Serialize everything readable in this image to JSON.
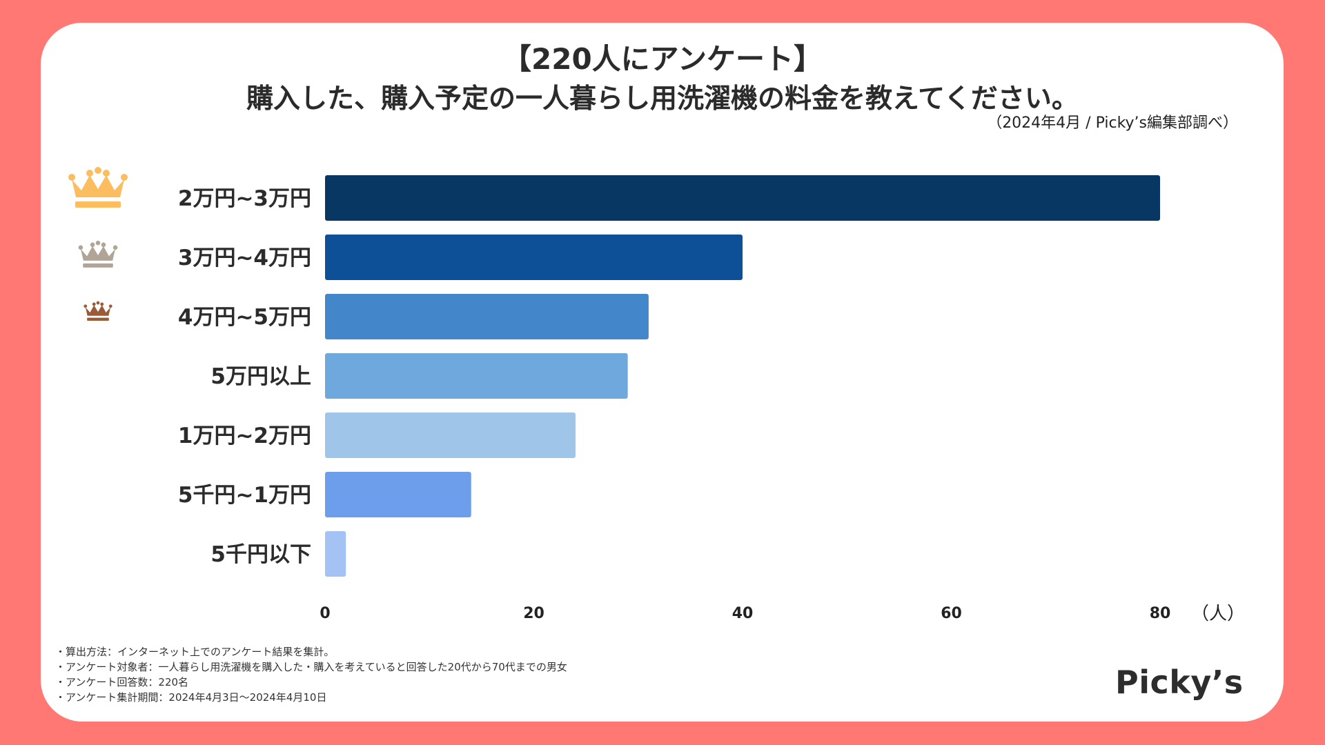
{
  "header": {
    "title": "【220人にアンケート】",
    "subtitle": "購入した、購入予定の一人暮らし用洗濯機の料金を教えてください。",
    "source": "（2024年4月 / Picky’s編集部調べ）"
  },
  "chart_data": {
    "type": "bar",
    "orientation": "horizontal",
    "title": "購入した、購入予定の一人暮らし用洗濯機の料金を教えてください。",
    "categories": [
      "2万円~3万円",
      "3万円~4万円",
      "4万円~5万円",
      "5万円以上",
      "1万円~2万円",
      "5千円~1万円",
      "5千円以下"
    ],
    "values": [
      80,
      40,
      31,
      29,
      24,
      14,
      2
    ],
    "colors": [
      "#093764",
      "#0d5097",
      "#4387ca",
      "#6fa8dc",
      "#9fc5e8",
      "#6d9eeb",
      "#a4c2f4"
    ],
    "xlim": [
      0,
      80
    ],
    "xticks": [
      0,
      20,
      40,
      60,
      80
    ],
    "xlabel": "（人）",
    "ylabel": "",
    "grid": false,
    "rank_icons": [
      {
        "rank": 1,
        "icon": "crown-gold-icon",
        "color": "#fbbd5d"
      },
      {
        "rank": 2,
        "icon": "crown-silver-icon",
        "color": "#b1a598"
      },
      {
        "rank": 3,
        "icon": "crown-bronze-icon",
        "color": "#9a5b36"
      }
    ]
  },
  "notes": [
    "・算出方法：インターネット上でのアンケート結果を集計。",
    "・アンケート対象者：一人暮らし用洗濯機を購入した・購入を考えていると回答した20代から70代までの男女",
    "・アンケート回答数：220名",
    "・アンケート集計期間：2024年4月3日〜2024年4月10日"
  ],
  "brand": {
    "logo_text": "Picky’s"
  }
}
